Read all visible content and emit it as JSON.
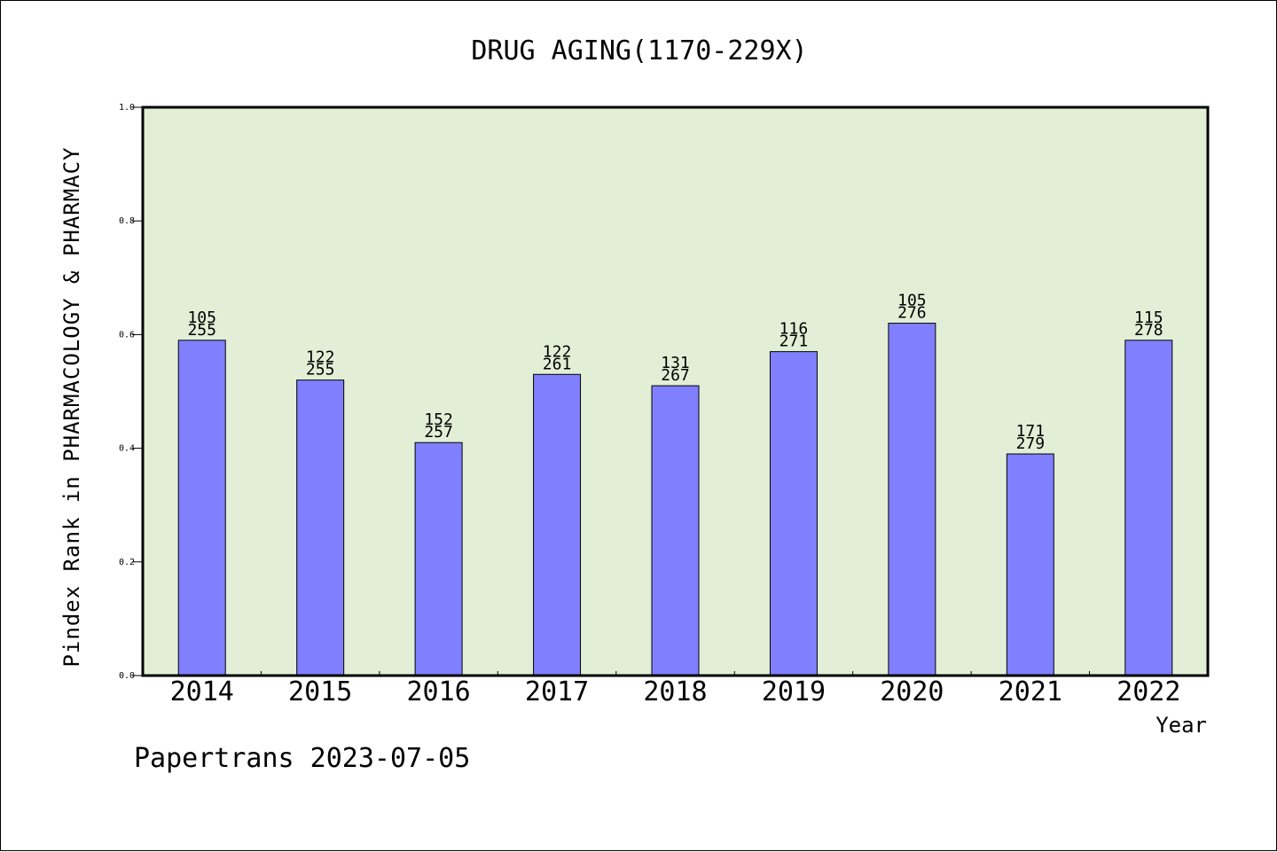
{
  "chart_data": {
    "type": "bar",
    "title": "DRUG AGING(1170-229X)",
    "xlabel": "Year",
    "ylabel": "Pindex Rank in PHARMACOLOGY & PHARMACY",
    "categories": [
      "2014",
      "2015",
      "2016",
      "2017",
      "2018",
      "2019",
      "2020",
      "2021",
      "2022"
    ],
    "values": [
      0.59,
      0.52,
      0.41,
      0.53,
      0.51,
      0.57,
      0.62,
      0.39,
      0.59
    ],
    "labels_top": [
      "105",
      "122",
      "152",
      "122",
      "131",
      "116",
      "105",
      "171",
      "115"
    ],
    "labels_bottom": [
      "255",
      "255",
      "257",
      "261",
      "267",
      "271",
      "276",
      "279",
      "278"
    ],
    "ylim": [
      0.0,
      1.0
    ],
    "yticks": [
      "0.0",
      "0.2",
      "0.4",
      "0.6",
      "0.8",
      "1.0"
    ],
    "grid": false,
    "colors": {
      "bar": "#8080ff",
      "plot_background": "#e2efd6",
      "axis": "#000000"
    }
  },
  "footer": "Papertrans 2023-07-05"
}
